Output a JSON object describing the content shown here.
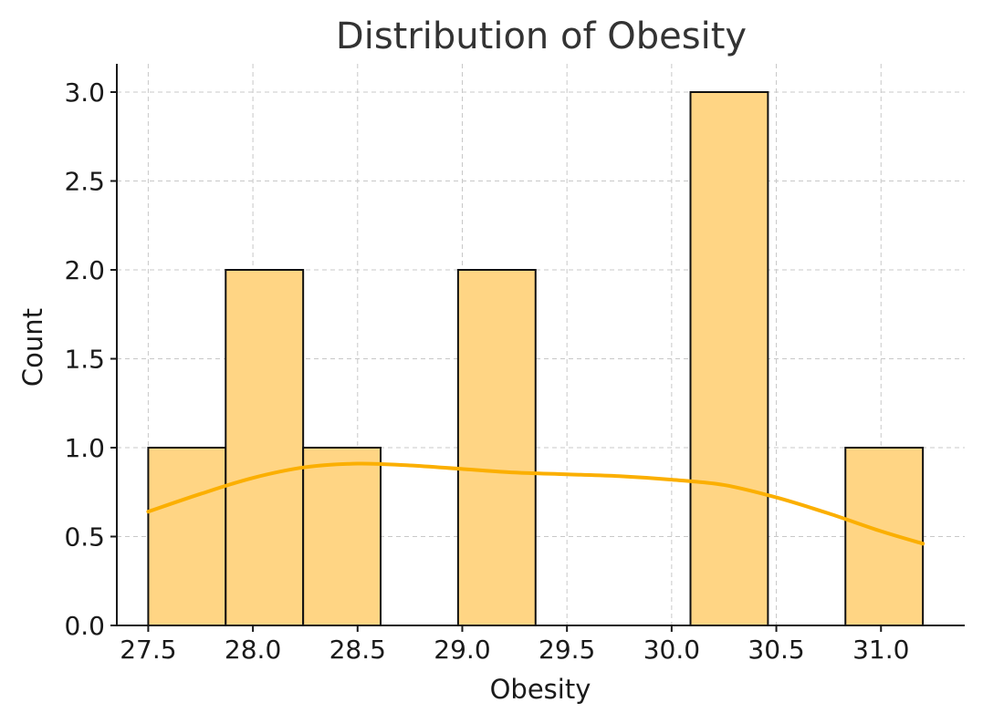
{
  "chart_data": {
    "type": "bar",
    "title": "Distribution of Obesity",
    "xlabel": "Obesity",
    "ylabel": "Count",
    "xlim": [
      27.35,
      31.4
    ],
    "ylim": [
      0,
      3.15
    ],
    "x_ticks": [
      "27.5",
      "28.0",
      "28.5",
      "29.0",
      "29.5",
      "30.0",
      "30.5",
      "31.0"
    ],
    "y_ticks": [
      "0.0",
      "0.5",
      "1.0",
      "1.5",
      "2.0",
      "2.5",
      "3.0"
    ],
    "grid": true,
    "bins": [
      {
        "x0": 27.5,
        "x1": 27.87,
        "count": 1
      },
      {
        "x0": 27.87,
        "x1": 28.24,
        "count": 2
      },
      {
        "x0": 28.24,
        "x1": 28.61,
        "count": 1
      },
      {
        "x0": 28.61,
        "x1": 28.98,
        "count": 0
      },
      {
        "x0": 28.98,
        "x1": 29.35,
        "count": 2
      },
      {
        "x0": 29.35,
        "x1": 29.72,
        "count": 0
      },
      {
        "x0": 29.72,
        "x1": 30.09,
        "count": 0
      },
      {
        "x0": 30.09,
        "x1": 30.46,
        "count": 3
      },
      {
        "x0": 30.46,
        "x1": 30.83,
        "count": 0
      },
      {
        "x0": 30.83,
        "x1": 31.2,
        "count": 1
      }
    ],
    "kde_curve": {
      "x": [
        27.5,
        27.75,
        28.0,
        28.25,
        28.5,
        28.75,
        29.0,
        29.25,
        29.5,
        29.75,
        30.0,
        30.25,
        30.5,
        30.75,
        31.0,
        31.2
      ],
      "y": [
        0.64,
        0.74,
        0.83,
        0.89,
        0.91,
        0.9,
        0.88,
        0.86,
        0.85,
        0.84,
        0.82,
        0.79,
        0.72,
        0.63,
        0.53,
        0.46
      ]
    },
    "colors": {
      "bar_fill": "#ffd584",
      "bar_edge": "#111111",
      "kde_line": "#fbaf00"
    }
  }
}
